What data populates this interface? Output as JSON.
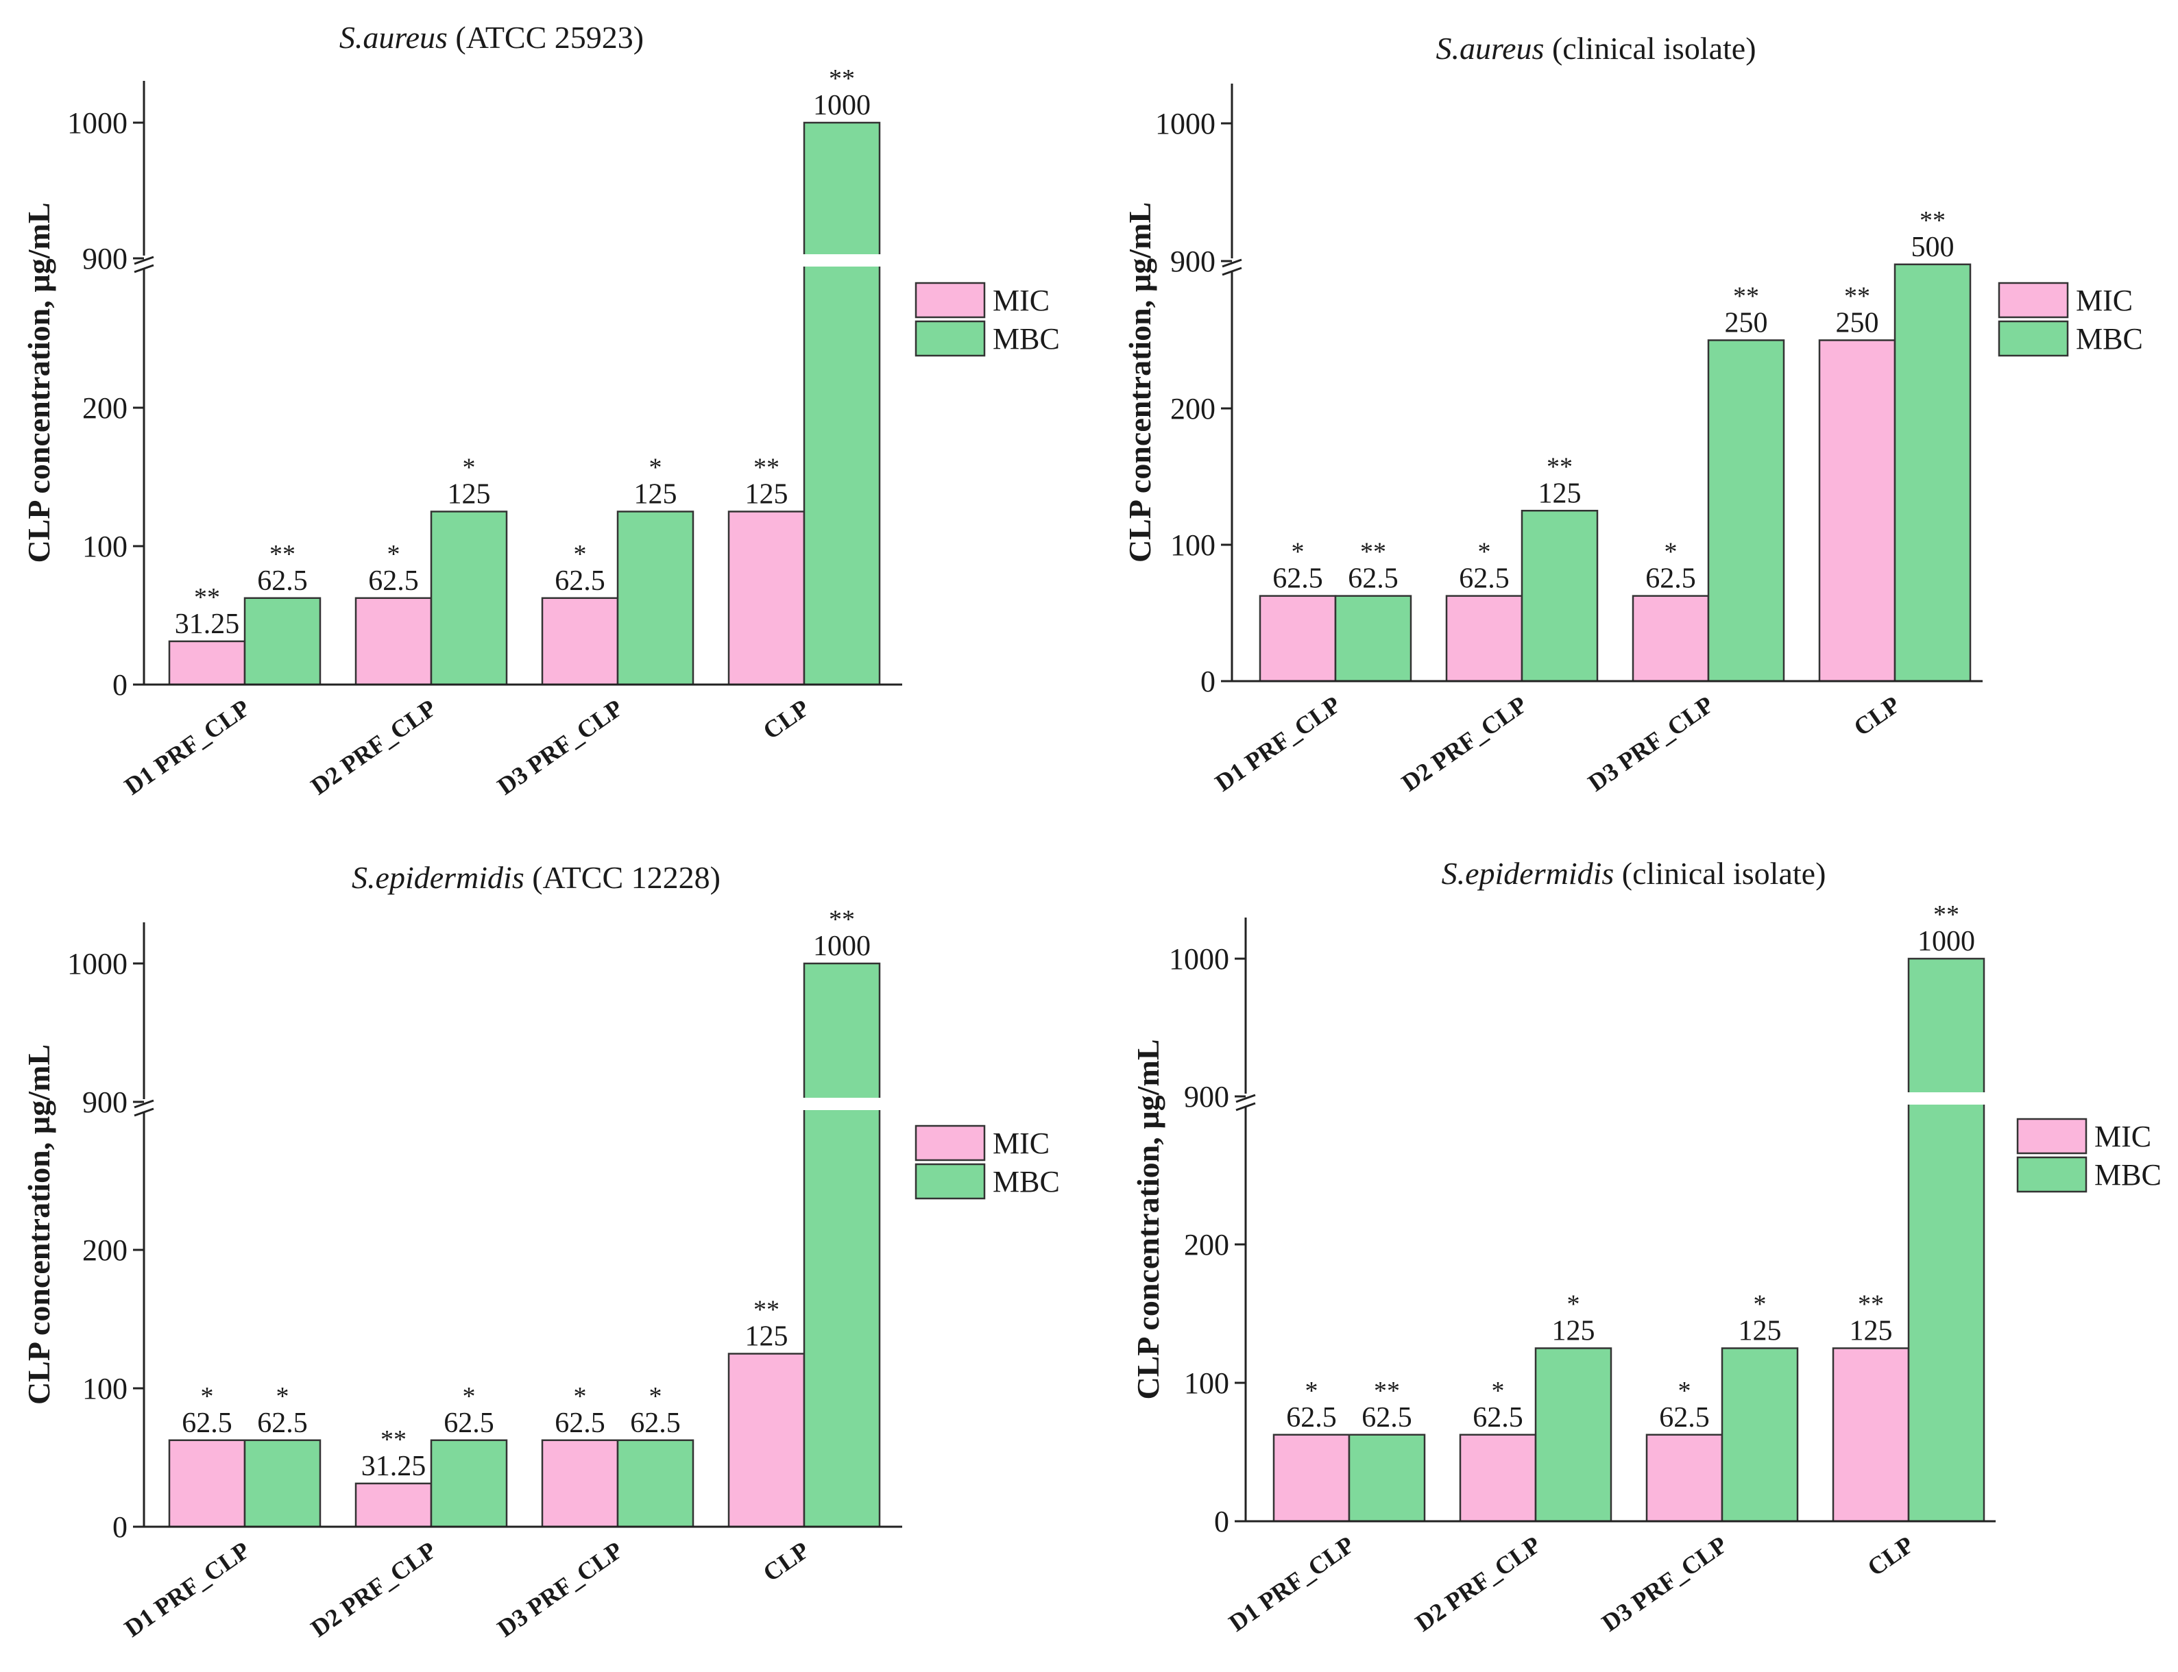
{
  "colors": {
    "MIC": "#fbb6dc",
    "MBC": "#7fd99b"
  },
  "legend": [
    "MIC",
    "MBC"
  ],
  "chart_data": [
    {
      "type": "bar",
      "title_italic": "S.aureus",
      "title_rest": " (ATCC 25923)",
      "categories": [
        "D1 PRF_CLP",
        "D2 PRF_CLP",
        "D3 PRF_CLP",
        "CLP"
      ],
      "series": [
        {
          "name": "MIC",
          "values": [
            31.25,
            62.5,
            62.5,
            125
          ],
          "labels": [
            "31.25",
            "62.5",
            "62.5",
            "125"
          ],
          "significance": [
            "**",
            "*",
            "*",
            "**"
          ]
        },
        {
          "name": "MBC",
          "values": [
            62.5,
            125,
            125,
            1000
          ],
          "labels": [
            "62.5",
            "125",
            "125",
            "1000"
          ],
          "significance": [
            "**",
            "*",
            "*",
            "**"
          ]
        }
      ],
      "ylabel": "CLP concentration, µg/mL",
      "y_ticks": [
        "0",
        "100",
        "200",
        "900",
        "1000"
      ],
      "y_break": [
        250,
        900
      ],
      "ylim": [
        0,
        1030
      ]
    },
    {
      "type": "bar",
      "title_italic": "S.aureus",
      "title_rest": " (clinical isolate)",
      "categories": [
        "D1 PRF_CLP",
        "D2 PRF_CLP",
        "D3 PRF_CLP",
        "CLP"
      ],
      "series": [
        {
          "name": "MIC",
          "values": [
            62.5,
            62.5,
            62.5,
            250
          ],
          "labels": [
            "62.5",
            "62.5",
            "62.5",
            "250"
          ],
          "significance": [
            "*",
            "*",
            "*",
            "**"
          ]
        },
        {
          "name": "MBC",
          "values": [
            62.5,
            125,
            250,
            500
          ],
          "labels": [
            "62.5",
            "125",
            "250",
            "500"
          ],
          "significance": [
            "**",
            "**",
            "**",
            "**"
          ]
        }
      ],
      "ylabel": "CLP concentration, µg/mL",
      "y_ticks": [
        "0",
        "100",
        "200",
        "900",
        "1000"
      ],
      "y_break": [
        250,
        900
      ],
      "ylim": [
        0,
        1030
      ]
    },
    {
      "type": "bar",
      "title_italic": "S.epidermidis",
      "title_rest": " (ATCC 12228)",
      "categories": [
        "D1 PRF_CLP",
        "D2 PRF_CLP",
        "D3 PRF_CLP",
        "CLP"
      ],
      "series": [
        {
          "name": "MIC",
          "values": [
            62.5,
            31.25,
            62.5,
            125
          ],
          "labels": [
            "62.5",
            "31.25",
            "62.5",
            "125"
          ],
          "significance": [
            "*",
            "**",
            "*",
            "**"
          ]
        },
        {
          "name": "MBC",
          "values": [
            62.5,
            62.5,
            62.5,
            1000
          ],
          "labels": [
            "62.5",
            "62.5",
            "62.5",
            "1000"
          ],
          "significance": [
            "*",
            "*",
            "*",
            "**"
          ]
        }
      ],
      "ylabel": "CLP concentration, µg/mL",
      "y_ticks": [
        "0",
        "100",
        "200",
        "900",
        "1000"
      ],
      "y_break": [
        250,
        900
      ],
      "ylim": [
        0,
        1030
      ]
    },
    {
      "type": "bar",
      "title_italic": "S.epidermidis",
      "title_rest": " (clinical isolate)",
      "categories": [
        "D1 PRF_CLP",
        "D2 PRF_CLP",
        "D3 PRF_CLP",
        "CLP"
      ],
      "series": [
        {
          "name": "MIC",
          "values": [
            62.5,
            62.5,
            62.5,
            125
          ],
          "labels": [
            "62.5",
            "62.5",
            "62.5",
            "125"
          ],
          "significance": [
            "*",
            "*",
            "*",
            "**"
          ]
        },
        {
          "name": "MBC",
          "values": [
            62.5,
            125,
            125,
            1000
          ],
          "labels": [
            "62.5",
            "125",
            "125",
            "1000"
          ],
          "significance": [
            "**",
            "*",
            "*",
            "**"
          ]
        }
      ],
      "ylabel": "CLP concentration, µg/mL",
      "y_ticks": [
        "0",
        "100",
        "200",
        "900",
        "1000"
      ],
      "y_break": [
        250,
        900
      ],
      "ylim": [
        0,
        1030
      ]
    }
  ]
}
